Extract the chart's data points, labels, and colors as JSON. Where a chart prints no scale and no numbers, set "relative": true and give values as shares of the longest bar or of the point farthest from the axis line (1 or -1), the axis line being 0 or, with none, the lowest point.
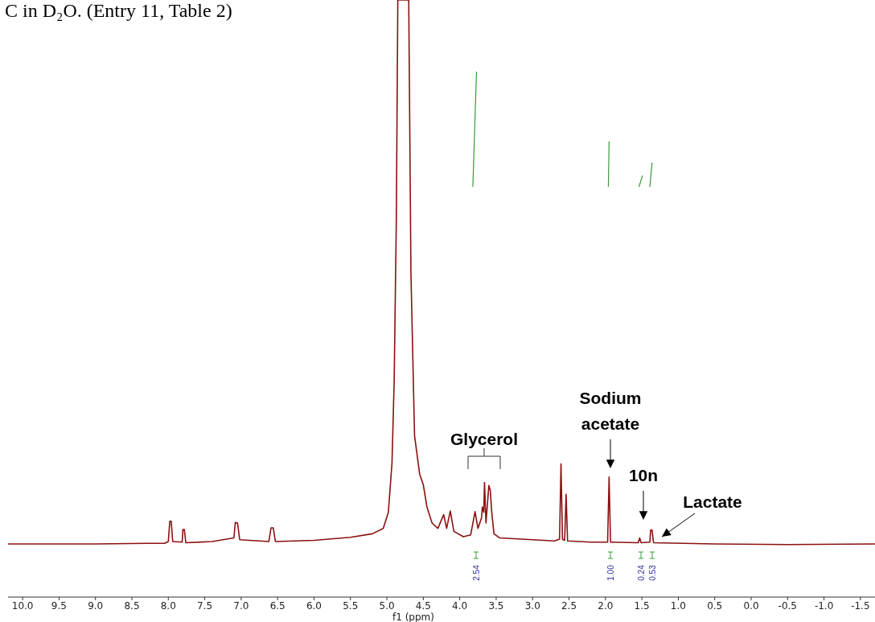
{
  "chart_data": {
    "type": "line",
    "title": "C in D₂O. (Entry 11, Table 2)",
    "xlabel": "f1 (ppm)",
    "relative": true,
    "xlim": [
      10.2,
      -1.7
    ],
    "xticks": [
      {
        "value": 10,
        "label": "10.0"
      },
      {
        "value": 9.5,
        "label": "9.5"
      },
      {
        "value": 9,
        "label": "9.0"
      },
      {
        "value": 8.5,
        "label": "8.5"
      },
      {
        "value": 8,
        "label": "8.0"
      },
      {
        "value": 7.5,
        "label": "7.5"
      },
      {
        "value": 7,
        "label": "7.0"
      },
      {
        "value": 6.5,
        "label": "6.5"
      },
      {
        "value": 6,
        "label": "6.0"
      },
      {
        "value": 5.5,
        "label": "5.5"
      },
      {
        "value": 5,
        "label": "5.0"
      },
      {
        "value": 4.5,
        "label": "4.5"
      },
      {
        "value": 4,
        "label": "4.0"
      },
      {
        "value": 3.5,
        "label": "3.5"
      },
      {
        "value": 3,
        "label": "3.0"
      },
      {
        "value": 2.5,
        "label": "2.5"
      },
      {
        "value": 2,
        "label": "2.0"
      },
      {
        "value": 1.5,
        "label": "1.5"
      },
      {
        "value": 1,
        "label": "1.0"
      },
      {
        "value": 0.5,
        "label": "0.5"
      },
      {
        "value": 0,
        "label": "0.0"
      },
      {
        "value": -0.5,
        "label": "-0.5"
      },
      {
        "value": -1,
        "label": "-1.0"
      },
      {
        "value": -1.5,
        "label": "-1.5"
      }
    ],
    "series": [
      {
        "color": "#8b1010",
        "x": [
          10.2,
          9.0,
          8.3,
          8.05,
          8.0,
          7.98,
          7.96,
          7.94,
          7.81,
          7.8,
          7.78,
          7.76,
          7.4,
          7.2,
          7.1,
          7.08,
          7.05,
          7.02,
          6.62,
          6.59,
          6.56,
          6.53,
          6.0,
          5.5,
          5.2,
          5.05,
          4.98,
          4.93,
          4.9,
          4.87,
          4.85,
          4.7,
          4.67,
          4.62,
          4.55,
          4.5,
          4.45,
          4.38,
          4.3,
          4.22,
          4.18,
          4.13,
          4.08,
          3.95,
          3.85,
          3.79,
          3.75,
          3.7,
          3.69,
          3.67,
          3.66,
          3.64,
          3.6,
          3.58,
          3.56,
          3.53,
          3.45,
          3.0,
          2.7,
          2.63,
          2.61,
          2.59,
          2.56,
          2.54,
          2.52,
          2.2,
          1.97,
          1.95,
          1.93,
          1.55,
          1.53,
          1.51,
          1.39,
          1.38,
          1.36,
          1.34,
          0.5,
          -0.5,
          -1.7
        ],
        "values": [
          0.089,
          0.089,
          0.09,
          0.09,
          0.093,
          0.127,
          0.127,
          0.093,
          0.092,
          0.113,
          0.113,
          0.091,
          0.093,
          0.097,
          0.099,
          0.125,
          0.124,
          0.096,
          0.093,
          0.116,
          0.116,
          0.093,
          0.095,
          0.1,
          0.106,
          0.115,
          0.142,
          0.224,
          0.361,
          0.635,
          1,
          1,
          0.544,
          0.27,
          0.206,
          0.188,
          0.151,
          0.124,
          0.115,
          0.138,
          0.115,
          0.144,
          0.11,
          0.101,
          0.104,
          0.143,
          0.115,
          0.133,
          0.151,
          0.142,
          0.192,
          0.124,
          0.187,
          0.178,
          0.141,
          0.106,
          0.099,
          0.096,
          0.094,
          0.097,
          0.223,
          0.097,
          0.095,
          0.172,
          0.094,
          0.092,
          0.092,
          0.201,
          0.092,
          0.091,
          0.099,
          0.091,
          0.092,
          0.112,
          0.112,
          0.091,
          0.089,
          0.088,
          0.089
        ]
      },
      {
        "color": "#3a9a3a",
        "x": [
          3.82,
          3.77
        ],
        "values": [
          0.687,
          0.88
        ]
      },
      {
        "color": "#3a9a3a",
        "x": [
          1.96,
          1.95
        ],
        "values": [
          0.687,
          0.763
        ]
      },
      {
        "color": "#3a9a3a",
        "x": [
          1.54,
          1.49
        ],
        "values": [
          0.687,
          0.706
        ]
      },
      {
        "color": "#3a9a3a",
        "x": [
          1.39,
          1.36
        ],
        "values": [
          0.687,
          0.728
        ]
      }
    ],
    "annotations": [
      "Glycerol",
      "Sodium acetate",
      "10n",
      "Lactate",
      "2.54",
      "1.00",
      "0.24",
      "0.53"
    ]
  }
}
